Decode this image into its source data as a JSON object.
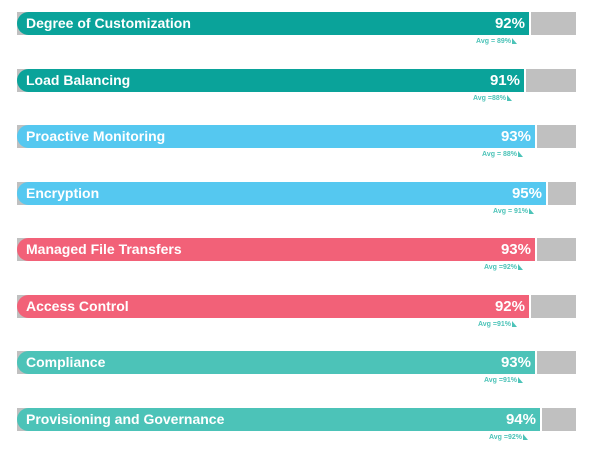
{
  "chart_data": {
    "type": "bar",
    "orientation": "horizontal",
    "categories": [
      "Degree of Customization",
      "Load Balancing",
      "Proactive Monitoring",
      "Encryption",
      "Managed File Transfers",
      "Access Control",
      "Compliance",
      "Provisioning and Governance"
    ],
    "values": [
      92,
      91,
      93,
      95,
      93,
      92,
      93,
      94
    ],
    "value_labels": [
      "92%",
      "91%",
      "93%",
      "95%",
      "93%",
      "92%",
      "93%",
      "94%"
    ],
    "averages": [
      89,
      88,
      88,
      91,
      92,
      91,
      91,
      92
    ],
    "average_labels": [
      "Avg = 89%",
      "Avg =88%",
      "Avg = 88%",
      "Avg = 91%",
      "Avg =92%",
      "Avg =91%",
      "Avg =91%",
      "Avg =92%"
    ],
    "bar_colors": [
      "#0aa39a",
      "#0aa39a",
      "#55c8f0",
      "#55c8f0",
      "#f26178",
      "#f26178",
      "#4cc3b8",
      "#4cc3b8"
    ],
    "track_color": "#c0c0c0",
    "average_color": "#4cc3b8",
    "xlim": [
      0,
      100
    ],
    "title": "",
    "xlabel": "",
    "ylabel": "",
    "grid": false,
    "legend": "none"
  }
}
